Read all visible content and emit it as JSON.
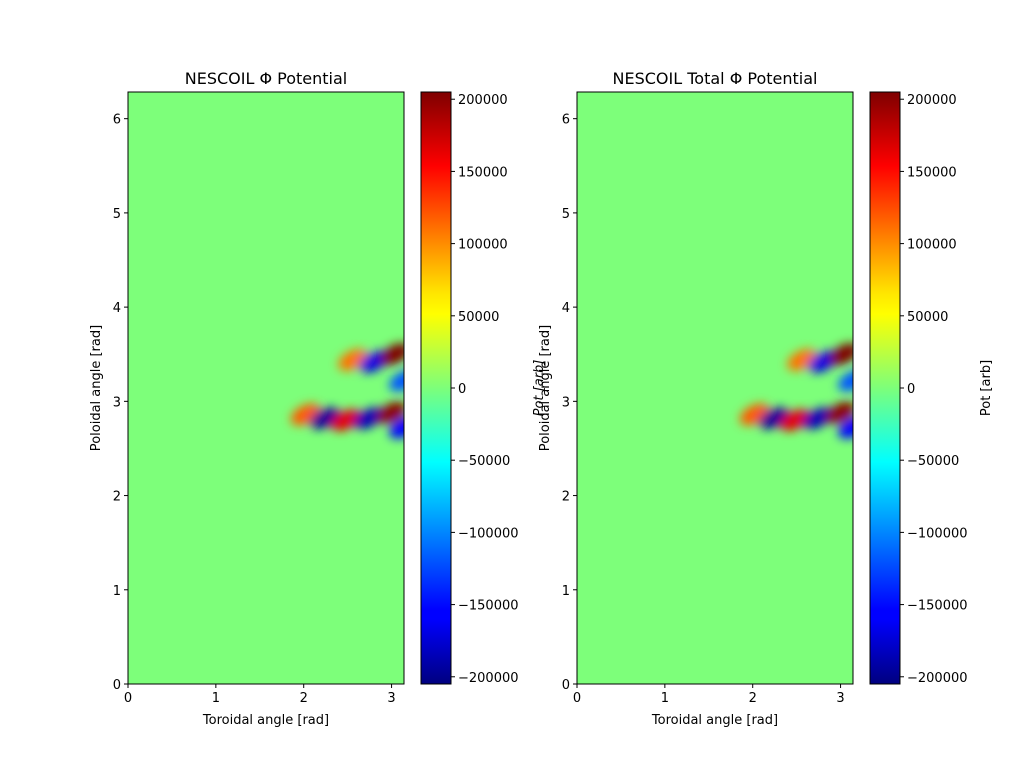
{
  "chart_data": [
    {
      "type": "heatmap",
      "title": "NESCOIL Φ Potential",
      "xlabel": "Toroidal angle [rad]",
      "ylabel": "Poloidal angle [rad]",
      "xlim": [
        0,
        3.14159
      ],
      "ylim": [
        0,
        6.28319
      ],
      "x_ticks": [
        0,
        1,
        2,
        3
      ],
      "y_ticks": [
        0,
        1,
        2,
        3,
        4,
        5,
        6
      ],
      "grid": false,
      "colormap": "jet",
      "background_value": 0,
      "colorbar": {
        "label": "",
        "range": [
          -205000,
          205000
        ],
        "ticks": [
          -200000,
          -150000,
          -100000,
          -50000,
          0,
          50000,
          100000,
          150000,
          200000
        ]
      },
      "features": [
        {
          "x": 2.02,
          "y": 2.86,
          "value": 120000
        },
        {
          "x": 2.24,
          "y": 2.82,
          "value": -195000
        },
        {
          "x": 2.48,
          "y": 2.8,
          "value": 165000
        },
        {
          "x": 2.74,
          "y": 2.82,
          "value": -185000
        },
        {
          "x": 3.0,
          "y": 2.88,
          "value": 200000
        },
        {
          "x": 3.14,
          "y": 2.72,
          "value": -160000
        },
        {
          "x": 2.56,
          "y": 3.44,
          "value": 110000
        },
        {
          "x": 2.8,
          "y": 3.42,
          "value": -170000
        },
        {
          "x": 3.04,
          "y": 3.5,
          "value": 205000
        },
        {
          "x": 3.14,
          "y": 3.22,
          "value": -120000
        }
      ]
    },
    {
      "type": "heatmap",
      "title": "NESCOIL Total Φ Potential",
      "xlabel": "Toroidal angle [rad]",
      "ylabel": "Poloidal angle [rad]",
      "overlapping_label": "Pot [arb]",
      "xlim": [
        0,
        3.14159
      ],
      "ylim": [
        0,
        6.28319
      ],
      "x_ticks": [
        0,
        1,
        2,
        3
      ],
      "y_ticks": [
        0,
        1,
        2,
        3,
        4,
        5,
        6
      ],
      "grid": false,
      "colormap": "jet",
      "background_value": 0,
      "colorbar": {
        "label": "Pot [arb]",
        "range": [
          -205000,
          205000
        ],
        "ticks": [
          -200000,
          -150000,
          -100000,
          -50000,
          0,
          50000,
          100000,
          150000,
          200000
        ]
      },
      "features": [
        {
          "x": 2.02,
          "y": 2.86,
          "value": 120000
        },
        {
          "x": 2.24,
          "y": 2.82,
          "value": -195000
        },
        {
          "x": 2.48,
          "y": 2.8,
          "value": 165000
        },
        {
          "x": 2.74,
          "y": 2.82,
          "value": -185000
        },
        {
          "x": 3.0,
          "y": 2.88,
          "value": 200000
        },
        {
          "x": 3.14,
          "y": 2.72,
          "value": -160000
        },
        {
          "x": 2.56,
          "y": 3.44,
          "value": 110000
        },
        {
          "x": 2.8,
          "y": 3.42,
          "value": -170000
        },
        {
          "x": 3.04,
          "y": 3.5,
          "value": 205000
        },
        {
          "x": 3.14,
          "y": 3.22,
          "value": -120000
        }
      ]
    }
  ]
}
